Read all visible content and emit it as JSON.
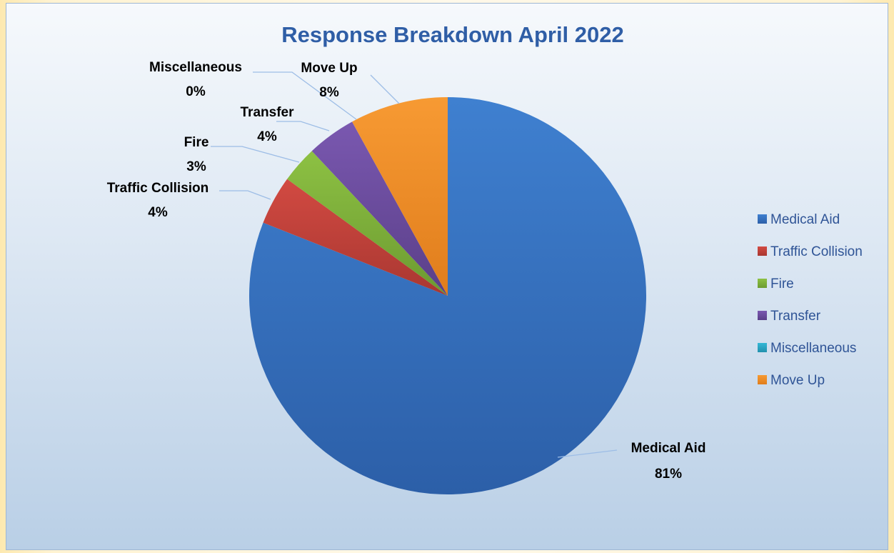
{
  "chart_data": {
    "type": "pie",
    "title": "Response Breakdown April 2022",
    "series": [
      {
        "name": "Medical Aid",
        "value": 81,
        "label": "81%",
        "color": "#3a76c4"
      },
      {
        "name": "Traffic Collision",
        "value": 4,
        "label": "4%",
        "color": "#c0433c"
      },
      {
        "name": "Fire",
        "value": 3,
        "label": "3%",
        "color": "#7fb03c"
      },
      {
        "name": "Transfer",
        "value": 4,
        "label": "4%",
        "color": "#6a4c9c"
      },
      {
        "name": "Miscellaneous",
        "value": 0,
        "label": "0%",
        "color": "#2aa5c2"
      },
      {
        "name": "Move Up",
        "value": 8,
        "label": "8%",
        "color": "#f18e28"
      }
    ],
    "legend_position": "right"
  }
}
